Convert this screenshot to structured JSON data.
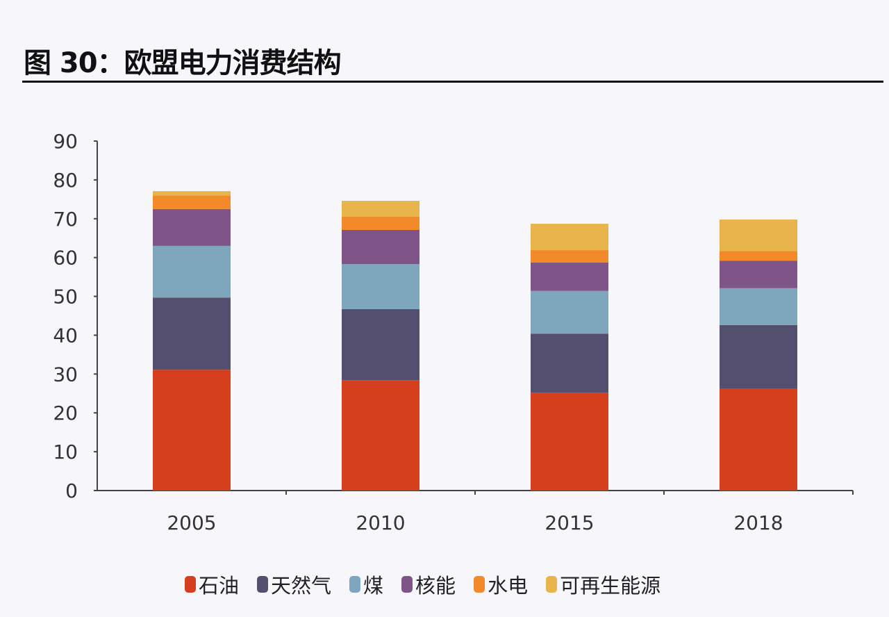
{
  "title": "图 30：欧盟电力消费结构",
  "chart_data": {
    "type": "bar",
    "stacked": true,
    "title": "图 30：欧盟电力消费结构",
    "xlabel": "",
    "ylabel": "",
    "ylim": [
      0,
      90
    ],
    "yticks": [
      0,
      10,
      20,
      30,
      40,
      50,
      60,
      70,
      80,
      90
    ],
    "categories": [
      "2005",
      "2010",
      "2015",
      "2018"
    ],
    "grid": false,
    "legend_position": "bottom",
    "series": [
      {
        "name": "石油",
        "color": "#d63f1e",
        "values": [
          31.1,
          28.4,
          25.2,
          26.3
        ]
      },
      {
        "name": "天然气",
        "color": "#544e6f",
        "values": [
          18.6,
          18.3,
          15.2,
          16.3
        ]
      },
      {
        "name": "煤",
        "color": "#7ea7bd",
        "values": [
          13.3,
          11.6,
          11.0,
          9.5
        ]
      },
      {
        "name": "核能",
        "color": "#7e5489",
        "values": [
          9.5,
          8.8,
          7.3,
          7.1
        ]
      },
      {
        "name": "水电",
        "color": "#f28a2a",
        "values": [
          3.5,
          3.4,
          3.2,
          2.5
        ]
      },
      {
        "name": "可再生能源",
        "color": "#e8b44c",
        "values": [
          1.1,
          4.1,
          6.8,
          8.1
        ]
      }
    ]
  }
}
